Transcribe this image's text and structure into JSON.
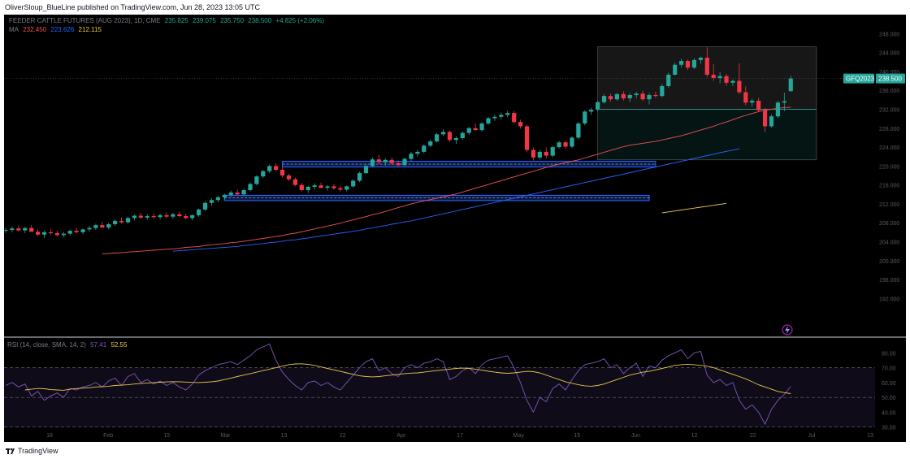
{
  "header": {
    "publisher": "OliverSloup_BlueLine published on TradingView.com, Jun 28, 2023 13:05 UTC"
  },
  "legend": {
    "symbol": "FEEDER CATTLE FUTURES (AUG 2023), 1D, CME",
    "ohlc": [
      "235.825",
      "239.075",
      "235.750",
      "238.500",
      "+4.825 (+2.06%)"
    ],
    "ma_label": "MA",
    "ma_values": [
      "232.450",
      "223.626",
      "212.115"
    ],
    "ma_colors": [
      "#ef5350",
      "#2962ff",
      "#e6c84a"
    ],
    "rsi_label": "RSI (14, close, SMA, 14, 2)",
    "rsi_values": [
      "57.41",
      "52.55"
    ],
    "rsi_colors": [
      "#7e57c2",
      "#e6c84a"
    ]
  },
  "footer": {
    "brand": "TradingView"
  },
  "price_tag": {
    "symbol": "GFQ2023",
    "price": "238.500"
  },
  "colors": {
    "up": "#26a69a",
    "down": "#f23645",
    "ma_fast": "#ef5350",
    "ma_slow": "#2962ff",
    "ma_long": "#e6c84a",
    "rsi": "#7e57c2",
    "rsi_ma": "#e6c84a",
    "zone": "#2962ff"
  },
  "chart_data": {
    "type": "candlestick",
    "price_axis": {
      "ylim": [
        184,
        252
      ],
      "ticks": [
        "248.000",
        "244.000",
        "240.000",
        "236.000",
        "232.000",
        "228.000",
        "224.000",
        "220.000",
        "216.000",
        "212.000",
        "208.000",
        "204.000",
        "200.000",
        "196.000",
        "192.000"
      ]
    },
    "time_axis": {
      "labels": [
        "18",
        "Feb",
        "15",
        "Mar",
        "13",
        "22",
        "Apr",
        "17",
        "May",
        "15",
        "Jun",
        "12",
        "22",
        "Jul",
        "13"
      ]
    },
    "candles": [
      [
        206.4,
        206.9,
        205.9,
        206.5
      ],
      [
        206.5,
        207.2,
        206.0,
        206.8
      ],
      [
        206.8,
        207.4,
        206.2,
        206.4
      ],
      [
        206.4,
        207.1,
        205.8,
        206.9
      ],
      [
        206.9,
        207.5,
        206.3,
        206.1
      ],
      [
        206.1,
        206.6,
        205.2,
        205.5
      ],
      [
        205.5,
        206.3,
        204.8,
        206.0
      ],
      [
        206.0,
        206.6,
        205.5,
        205.8
      ],
      [
        205.8,
        206.3,
        205.1,
        205.4
      ],
      [
        205.4,
        206.0,
        204.9,
        205.7
      ],
      [
        205.7,
        206.6,
        205.3,
        206.3
      ],
      [
        206.3,
        207.0,
        205.8,
        206.0
      ],
      [
        206.0,
        206.8,
        205.6,
        206.6
      ],
      [
        206.6,
        207.3,
        206.1,
        206.9
      ],
      [
        206.9,
        207.8,
        206.5,
        207.5
      ],
      [
        207.5,
        208.2,
        207.0,
        207.0
      ],
      [
        207.0,
        208.0,
        206.6,
        207.7
      ],
      [
        207.7,
        208.8,
        207.3,
        208.4
      ],
      [
        208.4,
        209.1,
        207.9,
        208.1
      ],
      [
        208.1,
        209.3,
        207.8,
        209.0
      ],
      [
        209.0,
        209.7,
        208.5,
        209.5
      ],
      [
        209.5,
        210.1,
        208.8,
        209.1
      ],
      [
        209.1,
        209.8,
        208.6,
        209.4
      ],
      [
        209.4,
        210.0,
        208.9,
        209.2
      ],
      [
        209.2,
        209.9,
        208.7,
        209.6
      ],
      [
        209.6,
        210.2,
        209.0,
        209.3
      ],
      [
        209.3,
        210.1,
        208.8,
        209.8
      ],
      [
        209.8,
        210.4,
        209.2,
        209.4
      ],
      [
        209.4,
        209.9,
        208.7,
        209.0
      ],
      [
        209.0,
        209.8,
        208.5,
        209.6
      ],
      [
        209.6,
        211.0,
        209.3,
        210.8
      ],
      [
        210.8,
        212.5,
        210.5,
        212.2
      ],
      [
        212.2,
        213.2,
        211.6,
        212.8
      ],
      [
        212.8,
        213.7,
        212.3,
        213.4
      ],
      [
        213.4,
        214.2,
        212.9,
        213.9
      ],
      [
        213.9,
        214.8,
        213.5,
        214.4
      ],
      [
        214.4,
        215.0,
        213.8,
        214.0
      ],
      [
        214.0,
        215.2,
        213.6,
        214.9
      ],
      [
        214.9,
        216.5,
        214.6,
        216.2
      ],
      [
        216.2,
        218.0,
        215.9,
        217.8
      ],
      [
        217.8,
        219.2,
        217.4,
        218.9
      ],
      [
        218.9,
        220.3,
        218.5,
        220.0
      ],
      [
        220.0,
        220.6,
        218.9,
        219.2
      ],
      [
        219.2,
        219.8,
        217.5,
        218.0
      ],
      [
        218.0,
        218.4,
        216.8,
        217.2
      ],
      [
        217.2,
        217.6,
        215.7,
        216.0
      ],
      [
        216.0,
        216.4,
        214.6,
        214.9
      ],
      [
        214.9,
        215.8,
        214.3,
        215.6
      ],
      [
        215.6,
        216.3,
        215.0,
        215.9
      ],
      [
        215.9,
        216.5,
        215.3,
        215.4
      ],
      [
        215.4,
        216.0,
        214.8,
        215.7
      ],
      [
        215.7,
        216.2,
        215.0,
        215.3
      ],
      [
        215.3,
        215.8,
        214.6,
        215.0
      ],
      [
        215.0,
        215.9,
        214.6,
        215.7
      ],
      [
        215.7,
        217.2,
        215.4,
        216.9
      ],
      [
        216.9,
        218.8,
        216.6,
        218.5
      ],
      [
        218.5,
        220.3,
        218.3,
        220.0
      ],
      [
        220.0,
        221.8,
        219.7,
        221.4
      ],
      [
        221.4,
        222.3,
        220.4,
        220.8
      ],
      [
        220.8,
        221.6,
        220.1,
        221.3
      ],
      [
        221.3,
        221.8,
        220.2,
        220.6
      ],
      [
        220.6,
        221.2,
        219.9,
        220.2
      ],
      [
        220.2,
        221.8,
        219.9,
        221.5
      ],
      [
        221.5,
        223.0,
        221.1,
        222.6
      ],
      [
        222.6,
        223.4,
        222.0,
        223.0
      ],
      [
        223.0,
        224.6,
        222.7,
        224.3
      ],
      [
        224.3,
        225.6,
        224.0,
        225.2
      ],
      [
        225.2,
        227.0,
        224.9,
        226.7
      ],
      [
        226.7,
        227.8,
        226.4,
        227.2
      ],
      [
        227.2,
        227.5,
        225.1,
        225.5
      ],
      [
        225.5,
        226.3,
        224.7,
        225.9
      ],
      [
        225.9,
        227.3,
        225.6,
        227.0
      ],
      [
        227.0,
        228.3,
        226.6,
        228.0
      ],
      [
        228.0,
        229.0,
        227.4,
        227.6
      ],
      [
        227.6,
        229.3,
        227.3,
        229.0
      ],
      [
        229.0,
        230.4,
        228.7,
        230.1
      ],
      [
        230.1,
        230.8,
        229.5,
        230.4
      ],
      [
        230.4,
        231.3,
        229.9,
        230.8
      ],
      [
        230.8,
        231.7,
        230.3,
        231.2
      ],
      [
        231.2,
        231.6,
        228.9,
        229.3
      ],
      [
        229.3,
        229.8,
        227.9,
        228.4
      ],
      [
        228.4,
        228.8,
        222.9,
        223.4
      ],
      [
        223.4,
        223.9,
        221.2,
        221.8
      ],
      [
        221.8,
        223.4,
        221.4,
        223.0
      ],
      [
        223.0,
        223.9,
        221.6,
        222.2
      ],
      [
        222.2,
        224.3,
        221.9,
        224.0
      ],
      [
        224.0,
        225.3,
        223.7,
        225.0
      ],
      [
        225.0,
        225.4,
        223.7,
        224.1
      ],
      [
        224.1,
        226.3,
        223.8,
        226.0
      ],
      [
        226.0,
        229.3,
        225.7,
        229.0
      ],
      [
        229.0,
        231.8,
        228.6,
        231.5
      ],
      [
        231.5,
        232.3,
        230.8,
        231.9
      ],
      [
        231.9,
        233.8,
        231.6,
        233.5
      ],
      [
        233.5,
        235.2,
        233.2,
        234.8
      ],
      [
        234.8,
        235.3,
        233.6,
        234.1
      ],
      [
        234.1,
        235.4,
        233.8,
        235.2
      ],
      [
        235.2,
        235.8,
        233.9,
        234.3
      ],
      [
        234.3,
        235.4,
        233.5,
        235.0
      ],
      [
        235.0,
        235.7,
        234.3,
        235.3
      ],
      [
        235.3,
        235.9,
        233.8,
        234.1
      ],
      [
        234.1,
        235.4,
        233.0,
        235.0
      ],
      [
        235.0,
        235.7,
        234.4,
        234.8
      ],
      [
        234.8,
        237.3,
        234.5,
        236.9
      ],
      [
        236.9,
        239.7,
        236.6,
        239.3
      ],
      [
        239.3,
        241.8,
        239.1,
        241.4
      ],
      [
        241.4,
        242.7,
        240.8,
        242.2
      ],
      [
        242.2,
        242.5,
        240.3,
        240.8
      ],
      [
        240.8,
        242.8,
        240.5,
        242.4
      ],
      [
        242.4,
        243.1,
        241.6,
        242.9
      ],
      [
        242.9,
        245.1,
        238.8,
        239.3
      ],
      [
        239.3,
        241.5,
        238.0,
        238.6
      ],
      [
        238.6,
        239.8,
        237.5,
        239.0
      ],
      [
        239.0,
        239.5,
        237.0,
        237.6
      ],
      [
        237.6,
        238.3,
        236.9,
        238.0
      ],
      [
        238.0,
        241.7,
        235.2,
        235.6
      ],
      [
        235.6,
        236.8,
        232.8,
        233.4
      ],
      [
        233.4,
        234.2,
        232.6,
        233.8
      ],
      [
        233.8,
        234.4,
        231.4,
        231.8
      ],
      [
        231.8,
        232.3,
        227.2,
        228.4
      ],
      [
        228.4,
        230.9,
        228.1,
        230.5
      ],
      [
        230.5,
        233.8,
        230.2,
        233.4
      ],
      [
        233.4,
        235.5,
        231.6,
        233.7
      ],
      [
        235.825,
        239.075,
        235.75,
        238.5
      ]
    ],
    "series": [
      {
        "name": "MA",
        "values": [
          201.4,
          201.5,
          201.6,
          201.7,
          201.8,
          201.9,
          202.0,
          202.1,
          202.2,
          202.3,
          202.4,
          202.5,
          202.6,
          202.8,
          202.9,
          203.0,
          203.2,
          203.3,
          203.5,
          203.6,
          203.8,
          203.9,
          204.1,
          204.3,
          204.5,
          204.7,
          204.9,
          205.1,
          205.3,
          205.6,
          205.8,
          206.1,
          206.4,
          206.7,
          207.0,
          207.3,
          207.6,
          207.9,
          208.3,
          208.6,
          209.0,
          209.3,
          209.7,
          210.0,
          210.4,
          210.8,
          211.2,
          211.6,
          212.0,
          212.3,
          212.6,
          212.9,
          213.2,
          213.5,
          213.8,
          214.1,
          214.5,
          214.9,
          215.3,
          215.7,
          216.1,
          216.5,
          216.9,
          217.3,
          217.7,
          218.1,
          218.5,
          218.9,
          219.3,
          219.7,
          220.1,
          220.4,
          220.7,
          221.0,
          221.3,
          221.7,
          222.1,
          222.5,
          222.9,
          223.3,
          223.7,
          224.1,
          224.4,
          224.6,
          224.8,
          225.0,
          225.2,
          225.5,
          225.8,
          226.1,
          226.4,
          226.8,
          227.2,
          227.6,
          228.0,
          228.4,
          228.9,
          229.3,
          229.8,
          230.3,
          230.7,
          231.1,
          231.5,
          231.8,
          232.0,
          232.2,
          232.35,
          232.45
        ]
      },
      {
        "name": "MA",
        "values": [
          202.0,
          202.1,
          202.2,
          202.3,
          202.4,
          202.5,
          202.6,
          202.7,
          202.8,
          202.9,
          203.0,
          203.2,
          203.3,
          203.5,
          203.6,
          203.8,
          203.9,
          204.1,
          204.3,
          204.4,
          204.6,
          204.8,
          205.0,
          205.2,
          205.4,
          205.6,
          205.8,
          206.0,
          206.2,
          206.4,
          206.7,
          206.9,
          207.2,
          207.4,
          207.7,
          207.9,
          208.2,
          208.4,
          208.7,
          209.0,
          209.3,
          209.6,
          209.9,
          210.2,
          210.5,
          210.8,
          211.1,
          211.4,
          211.7,
          212.0,
          212.3,
          212.6,
          212.9,
          213.2,
          213.5,
          213.8,
          214.1,
          214.4,
          214.7,
          215.0,
          215.3,
          215.6,
          215.9,
          216.2,
          216.5,
          216.8,
          217.1,
          217.4,
          217.7,
          218.0,
          218.3,
          218.6,
          218.9,
          219.2,
          219.5,
          219.8,
          220.1,
          220.4,
          220.7,
          221.0,
          221.3,
          221.6,
          221.9,
          222.2,
          222.5,
          222.8,
          223.1,
          223.35,
          223.626
        ]
      },
      {
        "name": "MA",
        "values": [
          210.1,
          210.3,
          210.5,
          210.7,
          210.9,
          211.1,
          211.3,
          211.5,
          211.7,
          211.9,
          212.115
        ]
      }
    ],
    "rsi": {
      "ylim": [
        20,
        90
      ],
      "ticks": [
        "80.00",
        "70.00",
        "60.00",
        "50.00",
        "40.00",
        "30.00"
      ],
      "bands": [
        70,
        50,
        30
      ],
      "values": [
        58,
        60,
        57,
        59,
        51,
        54,
        48,
        51,
        53,
        50,
        56,
        55,
        57,
        58,
        60,
        57,
        61,
        63,
        58,
        64,
        66,
        60,
        62,
        59,
        61,
        58,
        60,
        57,
        55,
        59,
        65,
        68,
        70,
        72,
        73,
        74,
        72,
        75,
        78,
        82,
        84,
        86,
        75,
        67,
        62,
        58,
        55,
        60,
        61,
        58,
        60,
        57,
        55,
        60,
        65,
        70,
        74,
        76,
        68,
        70,
        66,
        64,
        70,
        72,
        70,
        73,
        74,
        76,
        74,
        62,
        64,
        68,
        70,
        66,
        72,
        75,
        76,
        77,
        78,
        70,
        60,
        48,
        40,
        50,
        47,
        56,
        59,
        55,
        62,
        68,
        72,
        73,
        74,
        76,
        70,
        72,
        66,
        70,
        73,
        64,
        71,
        70,
        75,
        78,
        80,
        82,
        76,
        80,
        81,
        65,
        60,
        62,
        58,
        60,
        48,
        42,
        45,
        40,
        32,
        42,
        48,
        52,
        57.41
      ],
      "ma_values": [
        55,
        55.5,
        56,
        55.8,
        55.2,
        55,
        54.8,
        55.5,
        56,
        56.2,
        56.5,
        57,
        57.2,
        57.5,
        58,
        58.2,
        58.5,
        59,
        59.3,
        59.6,
        60,
        60.2,
        60.4,
        60.6,
        60.5,
        60.3,
        60.1,
        60,
        60.2,
        60.5,
        61,
        62,
        63,
        64,
        65,
        66,
        67,
        68,
        69,
        70,
        71,
        72,
        72.5,
        72.6,
        72.2,
        71.5,
        70.5,
        69.5,
        68.5,
        67.5,
        66.5,
        65.5,
        64.5,
        64,
        63.8,
        64,
        64.5,
        65,
        65.5,
        66,
        66.3,
        66.5,
        67,
        67.5,
        68,
        68.5,
        69,
        69.5,
        69.7,
        69.5,
        69,
        68.3,
        67.6,
        67,
        66.5,
        66.2,
        66.5,
        67,
        67.5,
        67.3,
        66.5,
        65,
        63.5,
        62,
        60.5,
        59.5,
        58.5,
        57.8,
        57.5,
        58,
        59,
        60.5,
        62,
        63.5,
        65,
        66,
        67,
        67.5,
        68.5,
        69.5,
        70.5,
        71.5,
        72,
        72.3,
        72,
        71.5,
        71,
        70,
        68.5,
        67,
        65.5,
        64,
        62.5,
        60.5,
        58.5,
        57,
        55.5,
        54,
        53.2,
        52.55
      ]
    }
  }
}
